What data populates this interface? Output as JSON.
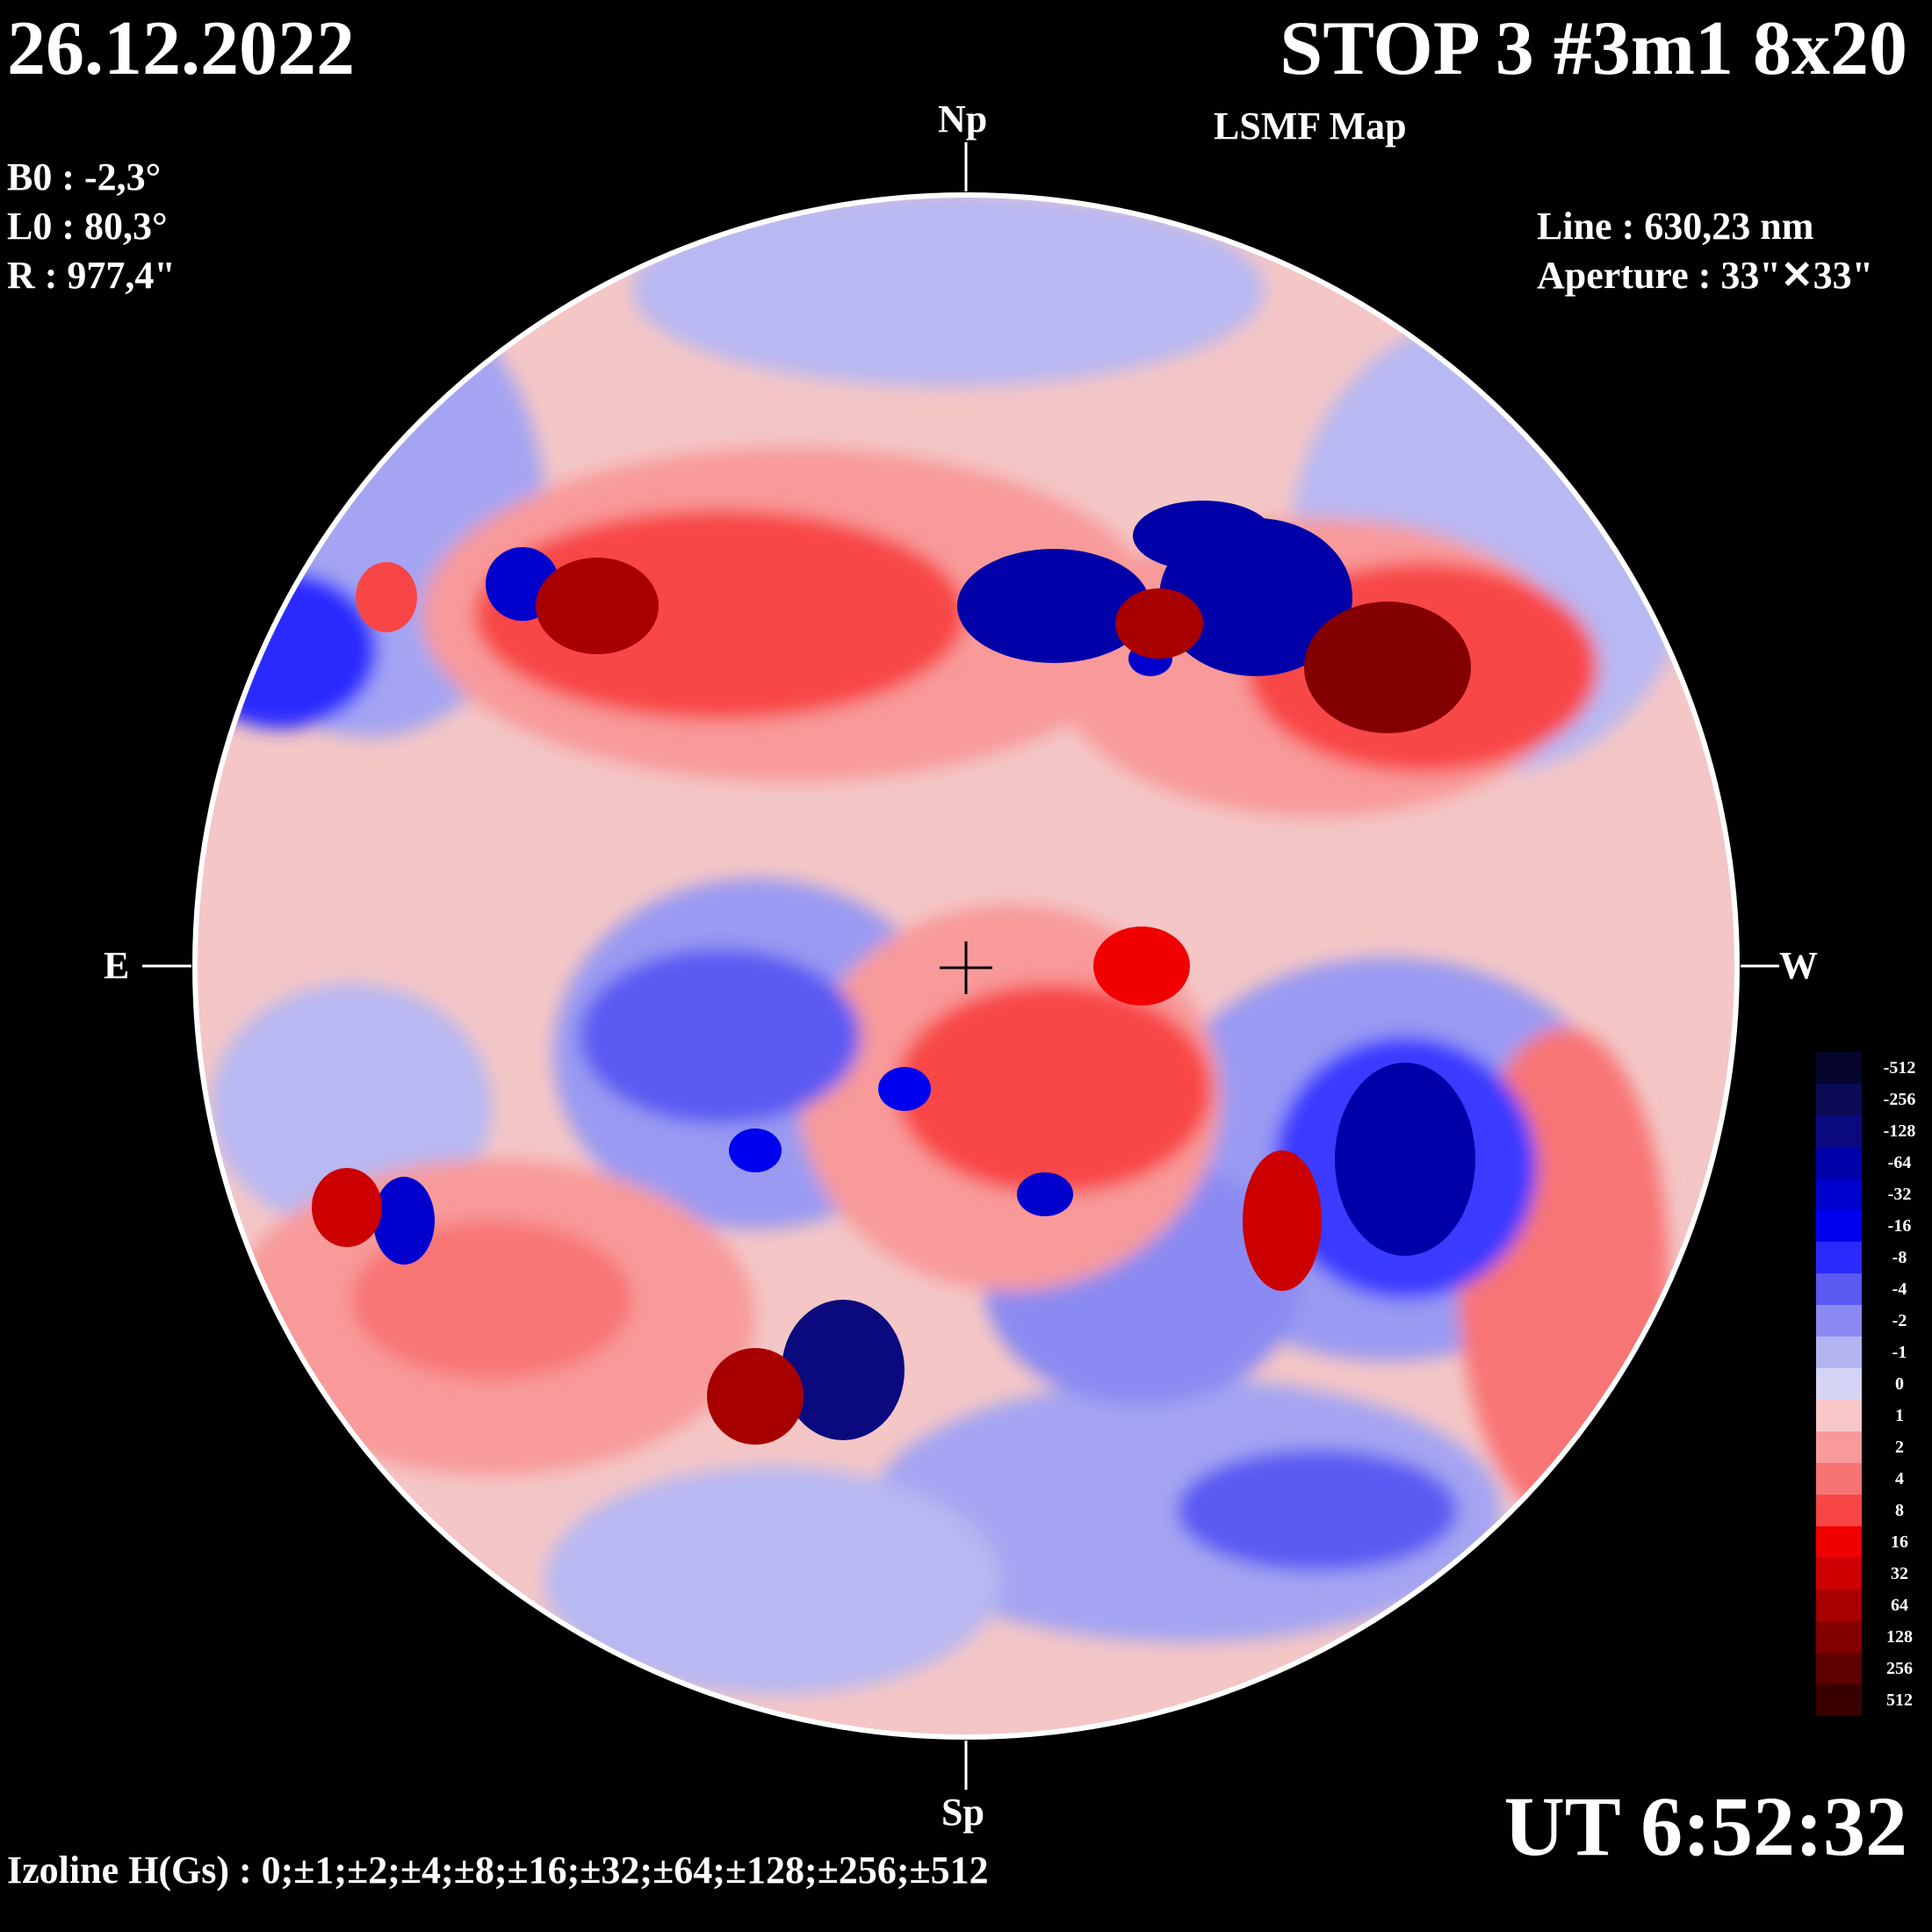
{
  "header": {
    "date": "26.12.2022",
    "title": "STOP 3 #3m1 8x20",
    "subtitle": "LSMF  Map"
  },
  "params_left": [
    {
      "text": "B0 : -2,3°"
    },
    {
      "text": "L0 : 80,3°"
    },
    {
      "text": "R  : 977,4\""
    }
  ],
  "params_right": [
    {
      "text": "Line :  630,23 nm"
    },
    {
      "text": "Aperture : 33\"✕33\""
    }
  ],
  "cardinals": {
    "north": "Np",
    "south": "Sp",
    "east": "E",
    "west": "W"
  },
  "time": "UT 6:52:32",
  "izoline": "Izoline H(Gs) : 0;±1;±2;±4;±8;±16;±32;±64;±128;±256;±512",
  "legend": {
    "labels": [
      "-512",
      "-256",
      "-128",
      "-64",
      "-32",
      "-16",
      "-8",
      "-4",
      "-2",
      "-1",
      "0",
      "1",
      "2",
      "4",
      "8",
      "16",
      "32",
      "64",
      "128",
      "256",
      "512"
    ],
    "colors": [
      "#05052e",
      "#0a0a55",
      "#0a0a7e",
      "#0000a8",
      "#0000cc",
      "#0000f0",
      "#2a2aff",
      "#5a5af2",
      "#8a8af2",
      "#b4b4f2",
      "#d4d4f4",
      "#f8c8c8",
      "#f89a9a",
      "#f87474",
      "#f84646",
      "#f00000",
      "#cc0000",
      "#a80000",
      "#840000",
      "#5e0000",
      "#3a0000"
    ]
  },
  "colors": {
    "disk_base": "#f4c6c6",
    "strong_negative": "#0000a8",
    "strong_positive": "#b00000",
    "background": "#000000"
  }
}
